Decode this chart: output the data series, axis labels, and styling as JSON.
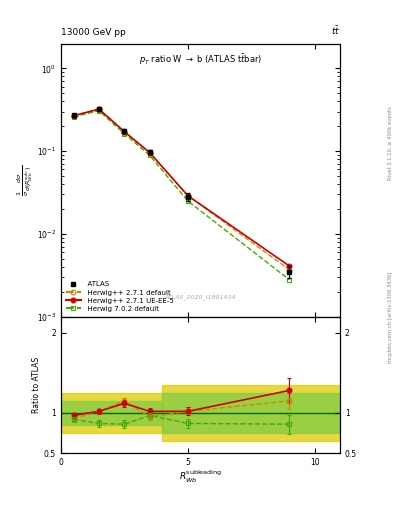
{
  "title_top": "13000 GeV pp",
  "title_right": "t$\\bar{t}$",
  "plot_title": "p$_T$ ratio W $\\rightarrow$ b (ATLAS t$\\bar{t}$bar)",
  "watermark": "ATLAS_2020_I1801434",
  "atlas_x": [
    0.5,
    1.5,
    2.5,
    3.5,
    5.0,
    9.0
  ],
  "atlas_y": [
    0.27,
    0.32,
    0.175,
    0.098,
    0.028,
    0.0035
  ],
  "atlas_yerr": [
    0.012,
    0.012,
    0.008,
    0.005,
    0.003,
    0.0006
  ],
  "hw271_def_x": [
    0.5,
    1.5,
    2.5,
    3.5,
    5.0,
    9.0
  ],
  "hw271_def_y": [
    0.268,
    0.322,
    0.172,
    0.096,
    0.029,
    0.0037
  ],
  "hw271_def_yerr": [
    0.003,
    0.003,
    0.002,
    0.002,
    0.001,
    0.0003
  ],
  "hw271_ue_x": [
    0.5,
    1.5,
    2.5,
    3.5,
    5.0,
    9.0
  ],
  "hw271_ue_y": [
    0.268,
    0.322,
    0.172,
    0.096,
    0.029,
    0.0041
  ],
  "hw271_ue_yerr": [
    0.003,
    0.003,
    0.002,
    0.002,
    0.001,
    0.0003
  ],
  "hw702_def_x": [
    0.5,
    1.5,
    2.5,
    3.5,
    5.0,
    9.0
  ],
  "hw702_def_y": [
    0.26,
    0.308,
    0.163,
    0.089,
    0.025,
    0.0028
  ],
  "hw702_def_yerr": [
    0.003,
    0.003,
    0.002,
    0.002,
    0.001,
    0.0002
  ],
  "ratio_hw271_def_y": [
    0.93,
    1.02,
    1.15,
    0.95,
    1.02,
    1.15
  ],
  "ratio_hw271_def_yerr": [
    0.03,
    0.03,
    0.04,
    0.04,
    0.05,
    0.1
  ],
  "ratio_hw271_ue_y": [
    0.97,
    1.02,
    1.12,
    1.02,
    1.02,
    1.28
  ],
  "ratio_hw271_ue_yerr": [
    0.03,
    0.03,
    0.04,
    0.04,
    0.05,
    0.15
  ],
  "ratio_hw702_def_y": [
    0.92,
    0.87,
    0.86,
    0.97,
    0.87,
    0.86
  ],
  "ratio_hw702_def_yerr": [
    0.03,
    0.04,
    0.05,
    0.04,
    0.06,
    0.12
  ],
  "colors": {
    "atlas": "#000000",
    "hw271_def": "#cc8800",
    "hw271_ue": "#cc0000",
    "hw702_def": "#44aa00",
    "band_green": "#88cc44",
    "band_yellow": "#ddcc00",
    "ratio_line": "#006600"
  },
  "xlim": [
    0,
    11
  ],
  "ylim_main_lo": 0.001,
  "ylim_main_hi": 2.0,
  "ylim_ratio_lo": 0.5,
  "ylim_ratio_hi": 2.2,
  "yellow_band": {
    "x1_lo": 0.0,
    "x1_hi": 4.0,
    "y1_lo": 0.75,
    "y1_hi": 1.25,
    "x2_lo": 4.0,
    "x2_hi": 11.0,
    "y2_lo": 0.65,
    "y2_hi": 1.35
  },
  "green_band": {
    "x1_lo": 0.0,
    "x1_hi": 4.0,
    "y1_lo": 0.85,
    "y1_hi": 1.15,
    "x2_lo": 4.0,
    "x2_hi": 11.0,
    "y2_lo": 0.75,
    "y2_hi": 1.25
  }
}
